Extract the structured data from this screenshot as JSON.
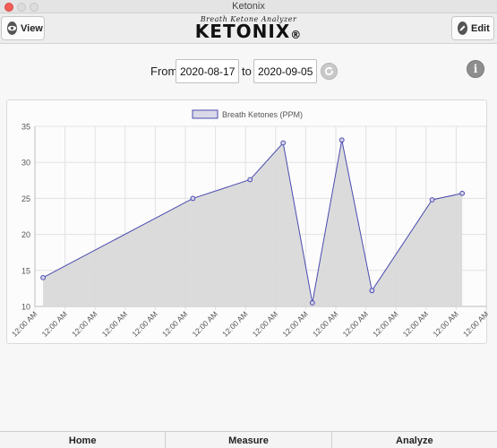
{
  "window": {
    "title": "Ketonix"
  },
  "header": {
    "view_label": "View",
    "edit_label": "Edit",
    "brand_tagline": "Breath Ketone Analyzer",
    "brand_name": "KETONIX",
    "brand_mark": "®"
  },
  "date_range": {
    "from_label": "From",
    "from_value": "2020-08-17",
    "to_label": "to",
    "to_value": "2020-09-05"
  },
  "icons": {
    "view": "eye-icon",
    "edit": "pencil-icon",
    "refresh": "refresh-icon",
    "info": "info-icon"
  },
  "chart_data": {
    "type": "area",
    "legend": {
      "position": "top",
      "label": "Breath Ketones (PPM)"
    },
    "series": [
      {
        "name": "Breath Ketones (PPM)",
        "values": [
          14.0,
          25.0,
          27.6,
          32.7,
          10.5,
          33.1,
          12.2,
          24.8,
          25.7
        ],
        "point_slots": [
          0.27,
          5.25,
          7.15,
          8.25,
          9.22,
          10.2,
          11.2,
          13.2,
          14.2
        ]
      }
    ],
    "x_tick_labels": [
      "12:00 AM",
      "12:00 AM",
      "12:00 AM",
      "12:00 AM",
      "12:00 AM",
      "12:00 AM",
      "12:00 AM",
      "12:00 AM",
      "12:00 AM",
      "12:00 AM",
      "12:00 AM",
      "12:00 AM",
      "12:00 AM",
      "12:00 AM",
      "12:00 AM",
      "12:00 AM"
    ],
    "y_ticks": [
      10,
      15,
      20,
      25,
      30,
      35
    ],
    "ylim": [
      10,
      35
    ],
    "grid": true,
    "colors": {
      "line": "#4b4bb0",
      "fill": "#d9d9d9",
      "grid": "#e2e2e2"
    }
  },
  "tabs": [
    {
      "label": "Home"
    },
    {
      "label": "Measure"
    },
    {
      "label": "Analyze"
    }
  ]
}
